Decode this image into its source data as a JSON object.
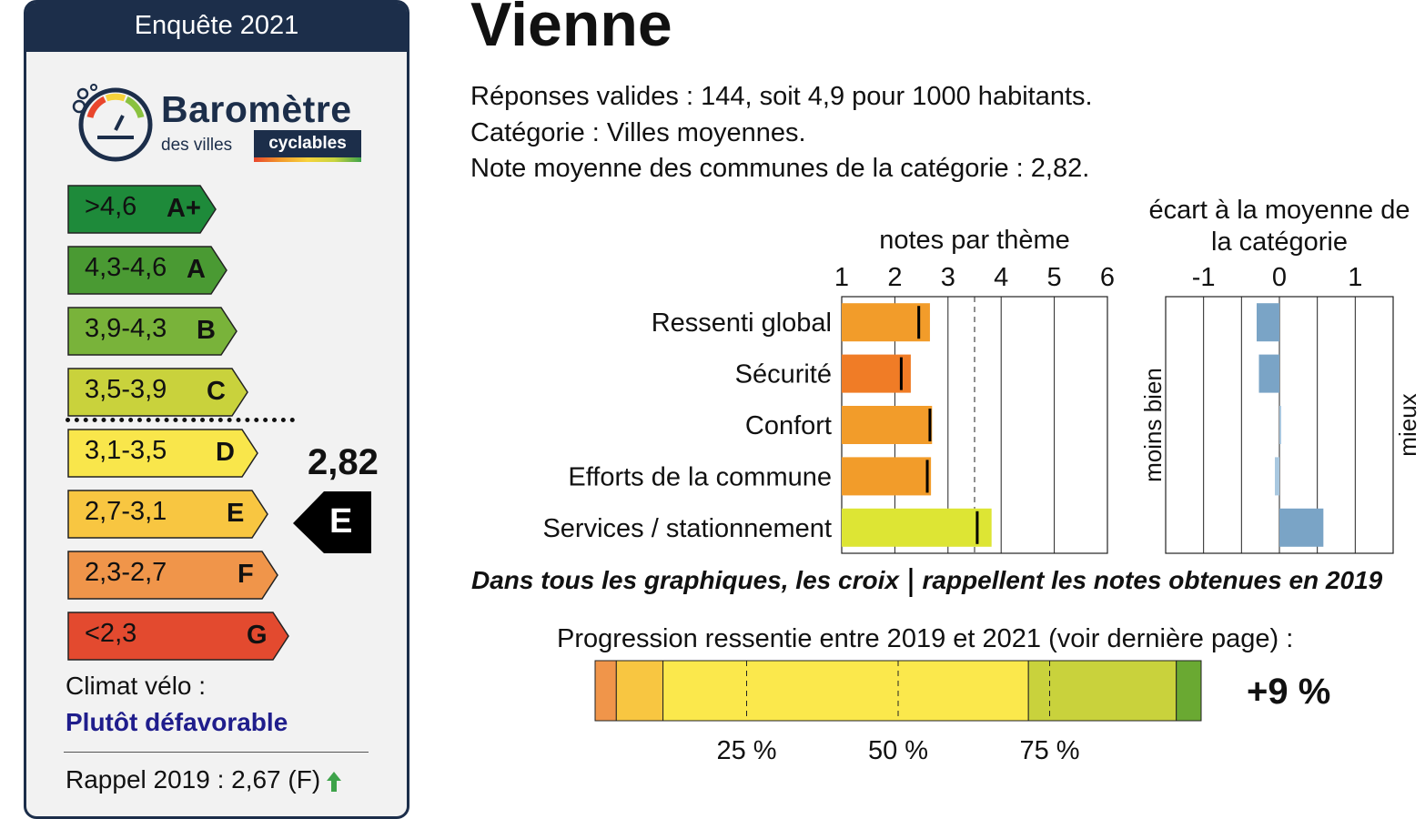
{
  "header": {
    "survey": "Enquête 2021"
  },
  "logo": {
    "title": "Baromètre",
    "subtitle": "des villes",
    "tag": "cyclables"
  },
  "grades": [
    {
      "range": ">4,6",
      "letter": "A+",
      "color": "#1e8a3a"
    },
    {
      "range": "4,3-4,6",
      "letter": "A",
      "color": "#4a9a33"
    },
    {
      "range": "3,9-4,3",
      "letter": "B",
      "color": "#79b33a"
    },
    {
      "range": "3,5-3,9",
      "letter": "C",
      "color": "#c9d23c"
    },
    {
      "range": "3,1-3,5",
      "letter": "D",
      "color": "#f9e64b"
    },
    {
      "range": "2,7-3,1",
      "letter": "E",
      "color": "#f8c641"
    },
    {
      "range": "2,3-2,7",
      "letter": "F",
      "color": "#f0954a"
    },
    {
      "range": "<2,3",
      "letter": "G",
      "color": "#e34a2f"
    }
  ],
  "score": {
    "value": "2,82",
    "letter": "E"
  },
  "climate": {
    "label": "Climat vélo :",
    "value": "Plutôt défavorable"
  },
  "recall": {
    "text": "Rappel 2019 : 2,67 (F)",
    "trend_icon": "arrow-up-icon",
    "trend_color": "#3ea34a"
  },
  "city": "Vienne",
  "info": [
    "Réponses valides : 144, soit 4,9 pour 1000 habitants.",
    "Catégorie : Villes moyennes.",
    "Note moyenne des communes de la catégorie : 2,82."
  ],
  "note": {
    "part1": "Dans tous les graphiques, les croix",
    "part2": "rappellent les notes obtenues en 2019"
  },
  "progression": {
    "title": "Progression ressentie entre 2019 et 2021 (voir dernière page) :",
    "value": "+9 %"
  },
  "chart_data": [
    {
      "type": "bar",
      "title": "notes par thème",
      "orientation": "horizontal",
      "categories": [
        "Ressenti global",
        "Sécurité",
        "Confort",
        "Efforts de la commune",
        "Services / stationnement"
      ],
      "values": [
        2.66,
        2.3,
        2.7,
        2.68,
        3.82
      ],
      "values_2019": [
        2.45,
        2.12,
        2.66,
        2.61,
        3.55
      ],
      "bar_colors": [
        "#f29c2a",
        "#f07c26",
        "#f29c2a",
        "#f29c2a",
        "#dde534"
      ],
      "category_mean": 3.5,
      "xlim": [
        1,
        6
      ],
      "xticks": [
        "1",
        "2",
        "3",
        "4",
        "5",
        "6"
      ],
      "grid": true
    },
    {
      "type": "bar",
      "title": "écart à la moyenne de la catégorie",
      "orientation": "horizontal",
      "categories": [
        "Ressenti global",
        "Sécurité",
        "Confort",
        "Efforts de la commune",
        "Services / stationnement"
      ],
      "values": [
        -0.3,
        -0.27,
        0.02,
        -0.06,
        0.58
      ],
      "xlim": [
        -1.5,
        1.5
      ],
      "xticks": [
        "-1",
        "0",
        "1"
      ],
      "left_label": "moins bien",
      "right_label": "mieux",
      "grid": true
    },
    {
      "type": "bar",
      "title": "Progression ressentie entre 2019 et 2021 (voir dernière page) :",
      "stacked": true,
      "segments": [
        {
          "value": 3.5,
          "color": "#f0954a"
        },
        {
          "value": 7.7,
          "color": "#f8c641"
        },
        {
          "value": 60.3,
          "color": "#fbe84c"
        },
        {
          "value": 24.4,
          "color": "#c9d23c"
        },
        {
          "value": 4.1,
          "color": "#6aa932"
        }
      ],
      "xticks": [
        "25 %",
        "50 %",
        "75 %"
      ],
      "tick_values": [
        25,
        50,
        75
      ],
      "xlim": [
        0,
        100
      ]
    }
  ]
}
